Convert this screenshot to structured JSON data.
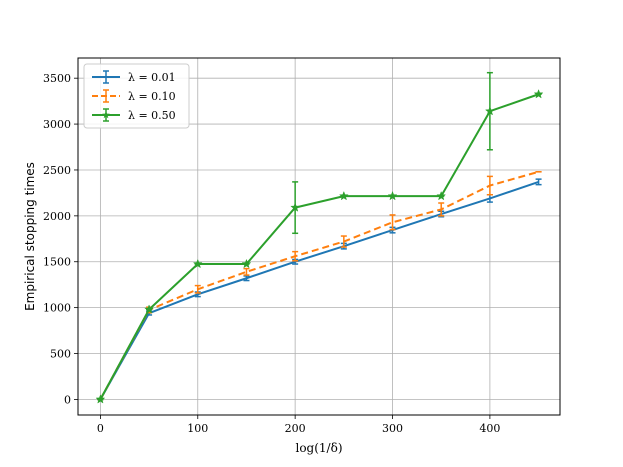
{
  "chart_data": {
    "type": "line",
    "title": "",
    "xlabel": "log(1/δ)",
    "ylabel": "Empirical stopping times",
    "xlim": [
      -23,
      472
    ],
    "ylim": [
      -170,
      3720
    ],
    "xticks": [
      0,
      100,
      200,
      300,
      400
    ],
    "xtick_labels": [
      "0",
      "100",
      "200",
      "300",
      "400"
    ],
    "yticks": [
      0,
      500,
      1000,
      1500,
      2000,
      2500,
      3000,
      3500
    ],
    "ytick_labels": [
      "0",
      "500",
      "1000",
      "1500",
      "2000",
      "2500",
      "3000",
      "3500"
    ],
    "grid": true,
    "legend_position": "top-left",
    "x": [
      0,
      50,
      100,
      150,
      200,
      250,
      300,
      350,
      400,
      450
    ],
    "series": [
      {
        "name": "λ = 0.01",
        "color": "#1f77b4",
        "linestyle": "solid",
        "marker": "none",
        "values": [
          0,
          940,
          1145,
          1320,
          1500,
          1670,
          1845,
          2020,
          2190,
          2370
        ],
        "errors": [
          0,
          20,
          25,
          25,
          25,
          30,
          30,
          30,
          40,
          30
        ]
      },
      {
        "name": "λ = 0.10",
        "color": "#ff7f0e",
        "linestyle": "dashed",
        "marker": "none",
        "values": [
          0,
          975,
          1200,
          1390,
          1560,
          1720,
          1930,
          2070,
          2330,
          2480
        ],
        "errors": [
          0,
          30,
          40,
          35,
          50,
          60,
          80,
          70,
          100,
          0
        ]
      },
      {
        "name": "λ = 0.50",
        "color": "#2ca02c",
        "linestyle": "solid",
        "marker": "star",
        "values": [
          0,
          980,
          1475,
          1475,
          2090,
          2215,
          2215,
          2215,
          3140,
          3325
        ],
        "errors": [
          0,
          0,
          0,
          0,
          280,
          0,
          0,
          0,
          420,
          0
        ]
      }
    ]
  }
}
